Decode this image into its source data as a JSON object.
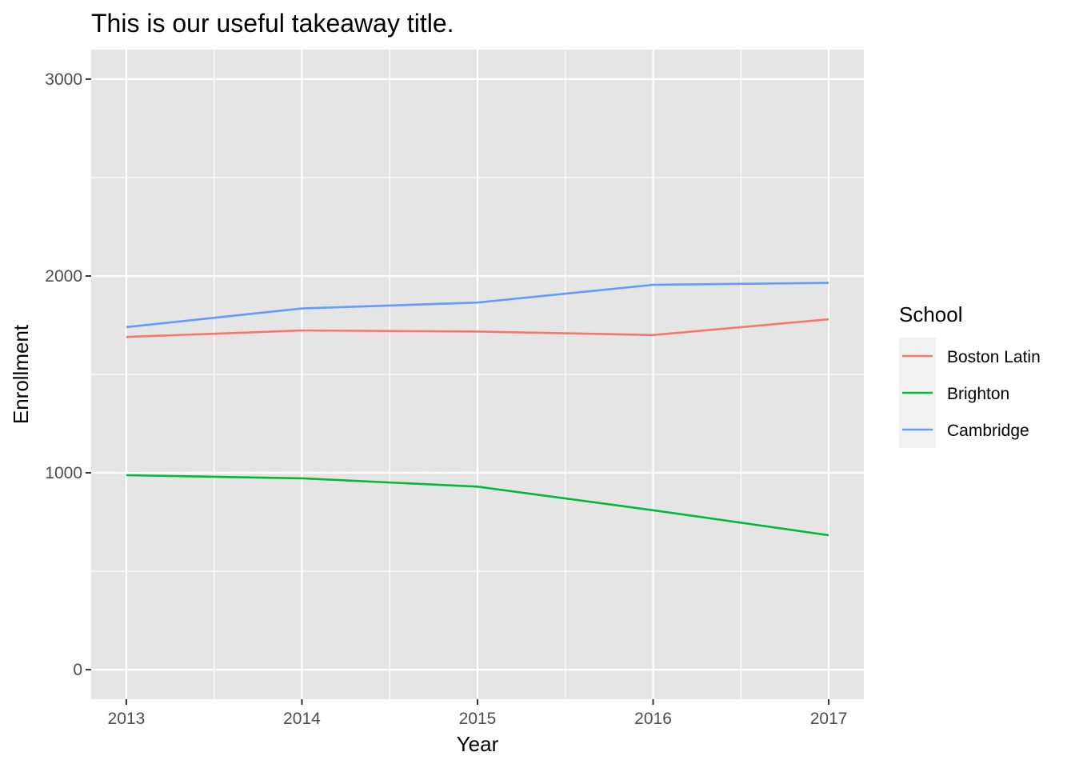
{
  "chart_data": {
    "type": "line",
    "title": "This is our useful takeaway title.",
    "xlabel": "Year",
    "ylabel": "Enrollment",
    "x": [
      2013,
      2014,
      2015,
      2016,
      2017
    ],
    "x_ticks": [
      "2013",
      "2014",
      "2015",
      "2016",
      "2017"
    ],
    "y_ticks": [
      "0",
      "1000",
      "2000",
      "3000"
    ],
    "xlim": [
      2012.8,
      2017.2
    ],
    "ylim": [
      -150,
      3150
    ],
    "grid": true,
    "legend": {
      "title": "School",
      "position": "right"
    },
    "background": "#e5e5e5",
    "series": [
      {
        "name": "Boston Latin",
        "color": "#f8766d",
        "values": [
          1690,
          1723,
          1718,
          1700,
          1780
        ]
      },
      {
        "name": "Brighton",
        "color": "#00ba38",
        "values": [
          988,
          972,
          930,
          810,
          683
        ]
      },
      {
        "name": "Cambridge",
        "color": "#619cff",
        "values": [
          1740,
          1835,
          1865,
          1955,
          1965
        ]
      }
    ]
  }
}
